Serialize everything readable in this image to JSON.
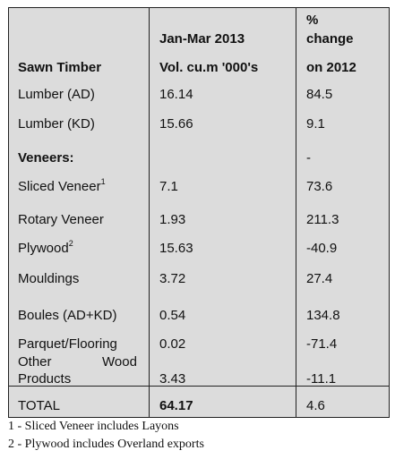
{
  "table": {
    "header": {
      "col1": "Sawn Timber",
      "col2_line1": "Jan-Mar 2013",
      "col2_line2": "Vol. cu.m '000's",
      "col3_line1": "%",
      "col3_line2": "change",
      "col3_line3": "on 2012"
    },
    "rows": [
      {
        "label": "Lumber (AD)",
        "sup": "",
        "vol": "16.14",
        "change": "84.5"
      },
      {
        "label": "Lumber (KD)",
        "sup": "",
        "vol": "15.66",
        "change": "9.1"
      },
      {
        "label": "Veneers:",
        "sup": "",
        "vol": "",
        "change": "-"
      },
      {
        "label": "Sliced Veneer",
        "sup": "1",
        "vol": "7.1",
        "change": "73.6"
      },
      {
        "label": "Rotary Veneer",
        "sup": "",
        "vol": "1.93",
        "change": "211.3"
      },
      {
        "label": "Plywood",
        "sup": "2",
        "vol": "15.63",
        "change": "-40.9"
      },
      {
        "label": "Mouldings",
        "sup": "",
        "vol": "3.72",
        "change": "27.4"
      },
      {
        "label": "Boules (AD+KD)",
        "sup": "",
        "vol": "0.54",
        "change": "134.8"
      },
      {
        "label": "Parquet/Flooring",
        "sup": "",
        "vol": "0.02",
        "change": "-71.4"
      },
      {
        "label_line1": "Other",
        "label_line1b": "Wood",
        "label_line2": "Products",
        "vol": "3.43",
        "change": "-11.1"
      }
    ],
    "total": {
      "label": "TOTAL",
      "vol": "64.17",
      "change": "4.6"
    }
  },
  "footnotes": [
    "1 - Sliced Veneer includes Layons",
    "2 - Plywood includes Overland  exports"
  ]
}
